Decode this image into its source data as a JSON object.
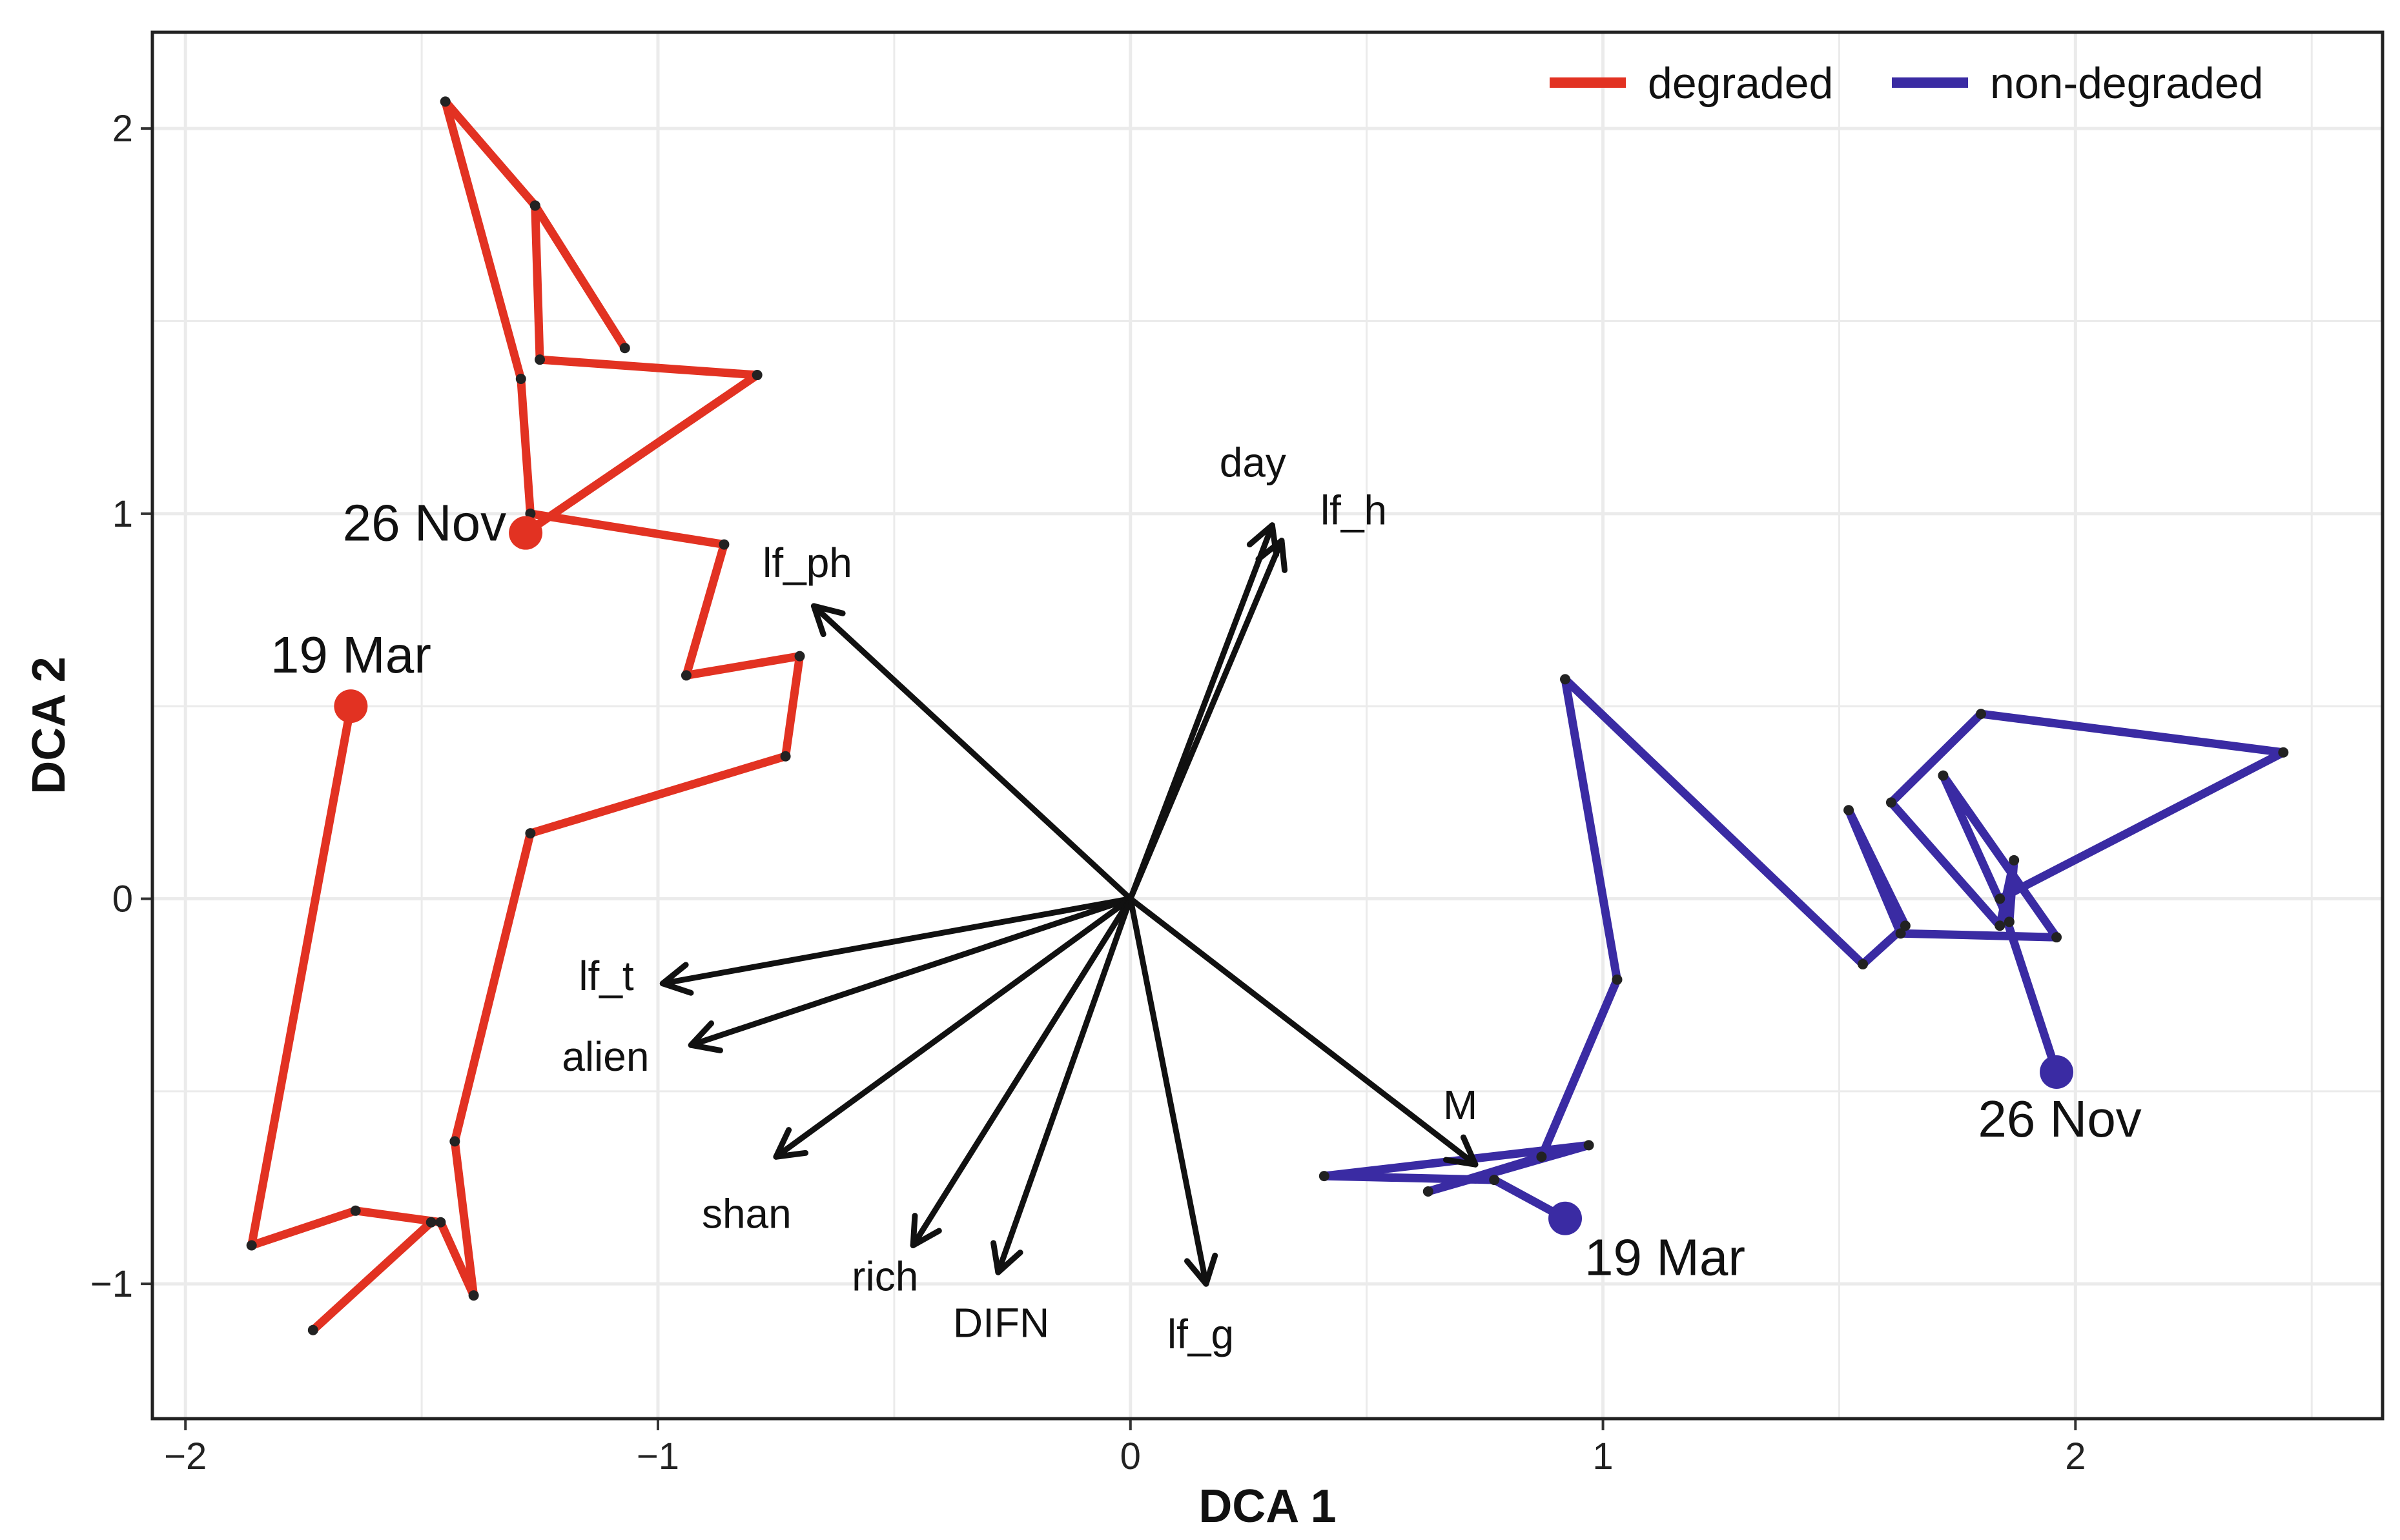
{
  "chart_data": {
    "type": "scatter",
    "xlabel": "DCA 1",
    "ylabel": "DCA 2",
    "xlim": [
      -2.07,
      2.65
    ],
    "ylim": [
      -1.35,
      2.25
    ],
    "x_ticks": [
      -2,
      -1,
      0,
      1,
      2
    ],
    "y_ticks": [
      -1,
      0,
      1,
      2
    ],
    "x_tick_labels": [
      "−2",
      "−1",
      "0",
      "1",
      "2"
    ],
    "y_tick_labels": [
      "−1",
      "0",
      "1",
      "2"
    ],
    "grid": true,
    "legend_position": "top-right",
    "colors": {
      "degraded": "#e23222",
      "non_degraded": "#3a2ba3",
      "vector": "#111111",
      "grid": "#ebebeb"
    },
    "series": [
      {
        "name": "degraded",
        "color": "#e23222",
        "points": [
          [
            -1.65,
            0.5
          ],
          [
            -1.86,
            -0.9
          ],
          [
            -1.64,
            -0.81
          ],
          [
            -1.46,
            -0.84
          ],
          [
            -1.39,
            -1.03
          ],
          [
            -1.43,
            -0.63
          ],
          [
            -1.27,
            0.17
          ],
          [
            -0.73,
            0.37
          ],
          [
            -0.7,
            0.63
          ],
          [
            -0.94,
            0.58
          ],
          [
            -0.86,
            0.92
          ],
          [
            -1.27,
            1.0
          ],
          [
            -1.29,
            1.35
          ],
          [
            -1.45,
            2.07
          ],
          [
            -1.26,
            1.8
          ],
          [
            -1.07,
            1.43
          ],
          [
            -1.26,
            1.8
          ],
          [
            -1.25,
            1.4
          ],
          [
            -0.79,
            1.36
          ],
          [
            -1.28,
            0.95
          ]
        ],
        "extra_segments": [
          [
            [
              -1.73,
              -1.12
            ],
            [
              -1.48,
              -0.84
            ]
          ]
        ],
        "start": {
          "x": -1.65,
          "y": 0.5,
          "label": "19 Mar"
        },
        "end": {
          "x": -1.28,
          "y": 0.95,
          "label": "26 Nov"
        }
      },
      {
        "name": "non-degraded",
        "color": "#3a2ba3",
        "points": [
          [
            0.92,
            -0.83
          ],
          [
            0.77,
            -0.73
          ],
          [
            0.41,
            -0.72
          ],
          [
            0.97,
            -0.64
          ],
          [
            0.63,
            -0.76
          ],
          [
            0.87,
            -0.67
          ],
          [
            1.03,
            -0.21
          ],
          [
            0.92,
            0.57
          ],
          [
            1.55,
            -0.17
          ],
          [
            1.64,
            -0.07
          ],
          [
            1.52,
            0.23
          ],
          [
            1.63,
            -0.09
          ],
          [
            1.96,
            -0.1
          ],
          [
            1.72,
            0.32
          ],
          [
            1.86,
            -0.06
          ],
          [
            1.87,
            0.1
          ],
          [
            1.84,
            -0.07
          ],
          [
            1.61,
            0.25
          ],
          [
            1.8,
            0.48
          ],
          [
            2.44,
            0.38
          ],
          [
            1.84,
            0.0
          ],
          [
            1.96,
            -0.45
          ]
        ],
        "start": {
          "x": 0.92,
          "y": -0.83,
          "label": "19 Mar"
        },
        "end": {
          "x": 1.96,
          "y": -0.45,
          "label": "26 Nov"
        }
      }
    ],
    "vectors": [
      {
        "name": "day",
        "x": 0.3,
        "y": 0.97,
        "label": "day"
      },
      {
        "name": "lf_h",
        "x": 0.32,
        "y": 0.93,
        "label": "lf_h"
      },
      {
        "name": "lf_ph",
        "x": -0.67,
        "y": 0.76,
        "label": "lf_ph"
      },
      {
        "name": "lf_t",
        "x": -0.99,
        "y": -0.22,
        "label": "lf_t"
      },
      {
        "name": "alien",
        "x": -0.93,
        "y": -0.38,
        "label": "alien"
      },
      {
        "name": "shan",
        "x": -0.75,
        "y": -0.67,
        "label": "shan"
      },
      {
        "name": "rich",
        "x": -0.46,
        "y": -0.9,
        "label": "rich"
      },
      {
        "name": "DIFN",
        "x": -0.28,
        "y": -0.97,
        "label": "DIFN"
      },
      {
        "name": "lf_g",
        "x": 0.16,
        "y": -1.0,
        "label": "lf_g"
      },
      {
        "name": "M",
        "x": 0.73,
        "y": -0.69,
        "label": "M"
      }
    ]
  }
}
